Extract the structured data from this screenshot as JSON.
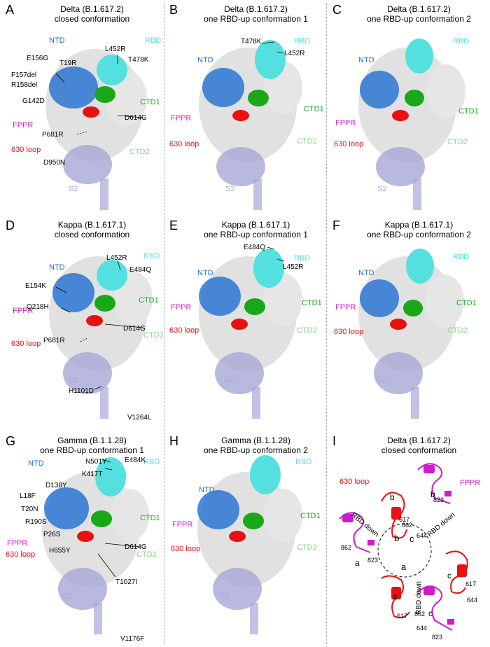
{
  "colors": {
    "ntd": "#1f6fd1",
    "rbd": "#55e0e0",
    "ctd1": "#18a818",
    "ctd2": "#8fd48f",
    "fppr": "#d01ad0",
    "loop": "#e81010",
    "s2": "#a8a8d8",
    "body": "#c8c8c8"
  },
  "domains": {
    "ntd": "NTD",
    "rbd": "RBD",
    "ctd1": "CTD1",
    "ctd2": "CTD2",
    "fppr": "FPPR",
    "loop": "630 loop",
    "s2": "S2"
  },
  "panels": {
    "A": {
      "letter": "A",
      "title1": "Delta (B.1.617.2)",
      "title2": "closed conformation",
      "mutations": [
        "E156G",
        "T19R",
        "F157del",
        "R158del",
        "G142D",
        "L452R",
        "T478K",
        "D614G",
        "P681R",
        "D950N"
      ]
    },
    "B": {
      "letter": "B",
      "title1": "Delta (B.1.617.2)",
      "title2": "one RBD-up conformation 1",
      "mutations": [
        "T478K",
        "L452R"
      ]
    },
    "C": {
      "letter": "C",
      "title1": "Delta (B.1.617.2)",
      "title2": "one RBD-up conformation 2",
      "mutations": []
    },
    "D": {
      "letter": "D",
      "title1": "Kappa (B.1.617.1)",
      "title2": "closed conformation",
      "mutations": [
        "L452R",
        "E484Q",
        "E154K",
        "Q218H",
        "D614G",
        "P681R",
        "H1101D",
        "V1264L"
      ]
    },
    "E": {
      "letter": "E",
      "title1": "Kappa (B.1.617.1)",
      "title2": "one RBD-up conformation 1",
      "mutations": [
        "E484Q",
        "L452R"
      ]
    },
    "F": {
      "letter": "F",
      "title1": "Kappa (B.1.617.1)",
      "title2": "one RBD-up conformation 2",
      "mutations": []
    },
    "G": {
      "letter": "G",
      "title1": "Gamma (B.1.1.28)",
      "title2": "one RBD-up conformation 1",
      "mutations": [
        "N501Y",
        "E484K",
        "K417T",
        "D138Y",
        "L18F",
        "T20N",
        "R190S",
        "P26S",
        "D614G",
        "H655Y",
        "T1027I",
        "V1176F"
      ]
    },
    "H": {
      "letter": "H",
      "title1": "Gamma (B.1.1.28)",
      "title2": "one RBD-up conformation 2",
      "mutations": []
    },
    "I": {
      "letter": "I",
      "title1": "Delta (B.1.617.2)",
      "title2": "closed conformation",
      "chains": [
        "a",
        "b",
        "c"
      ],
      "rbd_down": "RBD down",
      "residues": [
        "617",
        "644",
        "823",
        "862"
      ]
    }
  }
}
